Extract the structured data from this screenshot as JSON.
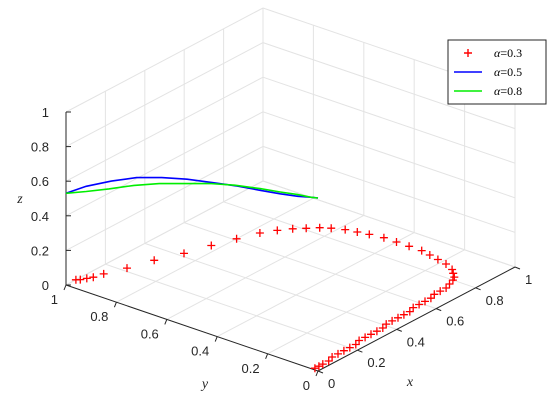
{
  "chart_data": {
    "type": "line3d",
    "axes": {
      "x": {
        "label": "x",
        "ticks": [
          "0",
          "0.2",
          "0.4",
          "0.6",
          "0.8",
          "1"
        ],
        "lim": [
          0,
          1
        ]
      },
      "y": {
        "label": "y",
        "ticks": [
          "0",
          "0.2",
          "0.4",
          "0.6",
          "0.8",
          "1"
        ],
        "lim": [
          0,
          1
        ]
      },
      "z": {
        "label": "z",
        "ticks": [
          "0",
          "0.2",
          "0.4",
          "0.6",
          "0.8",
          "1"
        ],
        "lim": [
          0,
          1
        ]
      }
    },
    "grid": true,
    "legend_position": "top-right",
    "legend_prefix": "α",
    "series": [
      {
        "name": "=0.3",
        "color": "#ff0000",
        "marker": "plus",
        "x": [
          0.01,
          0.03,
          0.05,
          0.08,
          0.11,
          0.14,
          0.17,
          0.2,
          0.23,
          0.26,
          0.29,
          0.32,
          0.35,
          0.38,
          0.41,
          0.44,
          0.47,
          0.5,
          0.53,
          0.56,
          0.59,
          0.62,
          0.65,
          0.68,
          0.71,
          0.74,
          0.77,
          0.8,
          0.82,
          0.84,
          0.86,
          0.88,
          0.89,
          0.9,
          0.91,
          0.91,
          0.91,
          0.91,
          0.9,
          0.89,
          0.88,
          0.86,
          0.84,
          0.81,
          0.78,
          0.74,
          0.69,
          0.61,
          0.52,
          0.42,
          0.32,
          0.22,
          0.14,
          0.1,
          0.08,
          0.06,
          0.05
        ],
        "y": [
          0.02,
          0.02,
          0.02,
          0.02,
          0.03,
          0.03,
          0.03,
          0.03,
          0.03,
          0.04,
          0.04,
          0.04,
          0.04,
          0.04,
          0.05,
          0.05,
          0.05,
          0.05,
          0.05,
          0.06,
          0.06,
          0.06,
          0.06,
          0.07,
          0.07,
          0.07,
          0.08,
          0.09,
          0.1,
          0.12,
          0.14,
          0.18,
          0.22,
          0.26,
          0.3,
          0.35,
          0.4,
          0.45,
          0.5,
          0.54,
          0.58,
          0.62,
          0.65,
          0.68,
          0.71,
          0.74,
          0.77,
          0.8,
          0.83,
          0.86,
          0.9,
          0.93,
          0.96,
          0.97,
          0.98,
          0.99,
          1.0
        ],
        "z": [
          0,
          0,
          0,
          0,
          0,
          0,
          0,
          0,
          0,
          0,
          0,
          0,
          0,
          0,
          0,
          0,
          0,
          0,
          0,
          0,
          0,
          0,
          0,
          0,
          0,
          0,
          0,
          0,
          0,
          0,
          0,
          0,
          0,
          0,
          0,
          0,
          0,
          0,
          0,
          0,
          0,
          0,
          0,
          0,
          0,
          0,
          0,
          0,
          0,
          0,
          0,
          0,
          0,
          0,
          0,
          0,
          0
        ]
      },
      {
        "name": "=0.5",
        "color": "#0000ff",
        "marker": "none",
        "x": [
          0.0,
          0.0,
          0.0,
          0.0,
          0.0,
          0.0,
          0.0,
          0.0,
          0.0,
          0.0,
          0.0,
          0.0,
          0.0
        ],
        "y": [
          0.0,
          0.03,
          0.08,
          0.15,
          0.23,
          0.32,
          0.42,
          0.52,
          0.62,
          0.72,
          0.82,
          0.92,
          1.0
        ],
        "z": [
          1.0,
          0.99,
          0.97,
          0.95,
          0.93,
          0.91,
          0.88,
          0.85,
          0.81,
          0.76,
          0.69,
          0.61,
          0.53
        ]
      },
      {
        "name": "=0.8",
        "color": "#00ee00",
        "marker": "none",
        "x": [
          0.0,
          0.0,
          0.0,
          0.0,
          0.0,
          0.0,
          0.0,
          0.0,
          0.0,
          0.0,
          0.0,
          0.0,
          0.0
        ],
        "y": [
          0.0,
          0.03,
          0.08,
          0.15,
          0.23,
          0.33,
          0.43,
          0.53,
          0.63,
          0.73,
          0.83,
          0.92,
          1.0
        ],
        "z": [
          1.0,
          0.99,
          0.98,
          0.96,
          0.94,
          0.91,
          0.87,
          0.82,
          0.77,
          0.71,
          0.64,
          0.58,
          0.53
        ]
      }
    ]
  }
}
